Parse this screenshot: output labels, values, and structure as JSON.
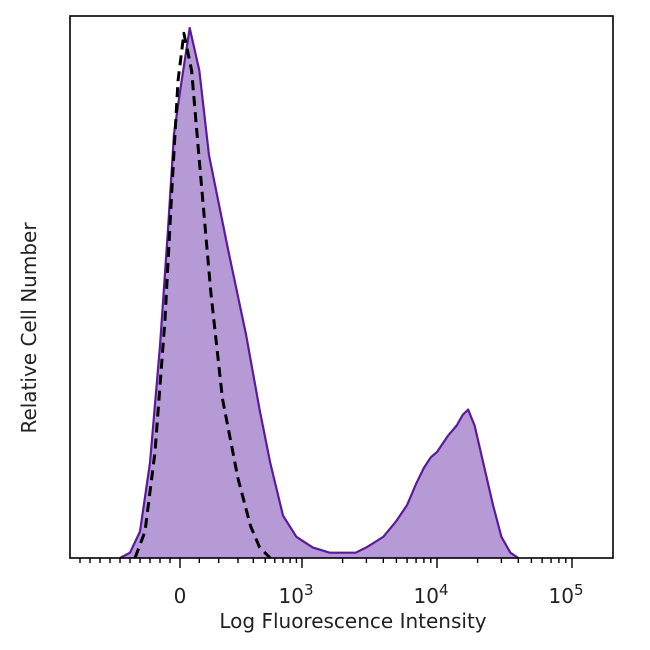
{
  "chart_data": {
    "type": "area",
    "xlabel": "Log Fluorescence Intensity",
    "ylabel": "Relative Cell Number",
    "x_scale": "biexponential",
    "xlim": [
      -1000,
      200000
    ],
    "ylim": [
      0,
      100
    ],
    "x_tick_labels": [
      {
        "value": 0,
        "base": "0",
        "exp": ""
      },
      {
        "value": 1000,
        "base": "10",
        "exp": "3"
      },
      {
        "value": 10000,
        "base": "10",
        "exp": "4"
      },
      {
        "value": 100000,
        "base": "10",
        "exp": "5"
      }
    ],
    "grid": false,
    "legend": "none",
    "series": [
      {
        "style": "filled-solid",
        "color": "#5b1a9c",
        "fill": "#b69ad6",
        "points": [
          [
            -600,
            0
          ],
          [
            -500,
            1
          ],
          [
            -400,
            5
          ],
          [
            -300,
            18
          ],
          [
            -200,
            40
          ],
          [
            -120,
            62
          ],
          [
            -60,
            80
          ],
          [
            0,
            88
          ],
          [
            50,
            100
          ],
          [
            100,
            92
          ],
          [
            150,
            76
          ],
          [
            250,
            58
          ],
          [
            350,
            42
          ],
          [
            450,
            28
          ],
          [
            550,
            18
          ],
          [
            700,
            8
          ],
          [
            900,
            4
          ],
          [
            1200,
            2
          ],
          [
            1600,
            1
          ],
          [
            2000,
            1
          ],
          [
            2500,
            1
          ],
          [
            3000,
            2
          ],
          [
            4000,
            4
          ],
          [
            5000,
            7
          ],
          [
            6000,
            10
          ],
          [
            7000,
            14
          ],
          [
            8000,
            17
          ],
          [
            9000,
            19
          ],
          [
            10000,
            20
          ],
          [
            12000,
            23
          ],
          [
            14000,
            25
          ],
          [
            15500,
            27
          ],
          [
            17000,
            28
          ],
          [
            19000,
            25
          ],
          [
            22000,
            18
          ],
          [
            26000,
            10
          ],
          [
            30000,
            4
          ],
          [
            35000,
            1
          ],
          [
            40000,
            0
          ]
        ]
      },
      {
        "style": "dashed",
        "color": "#000000",
        "points": [
          [
            -450,
            0
          ],
          [
            -350,
            5
          ],
          [
            -250,
            20
          ],
          [
            -150,
            45
          ],
          [
            -80,
            70
          ],
          [
            -20,
            90
          ],
          [
            20,
            99
          ],
          [
            60,
            92
          ],
          [
            100,
            75
          ],
          [
            160,
            50
          ],
          [
            220,
            30
          ],
          [
            300,
            15
          ],
          [
            380,
            6
          ],
          [
            450,
            2
          ],
          [
            550,
            0
          ]
        ]
      }
    ]
  }
}
